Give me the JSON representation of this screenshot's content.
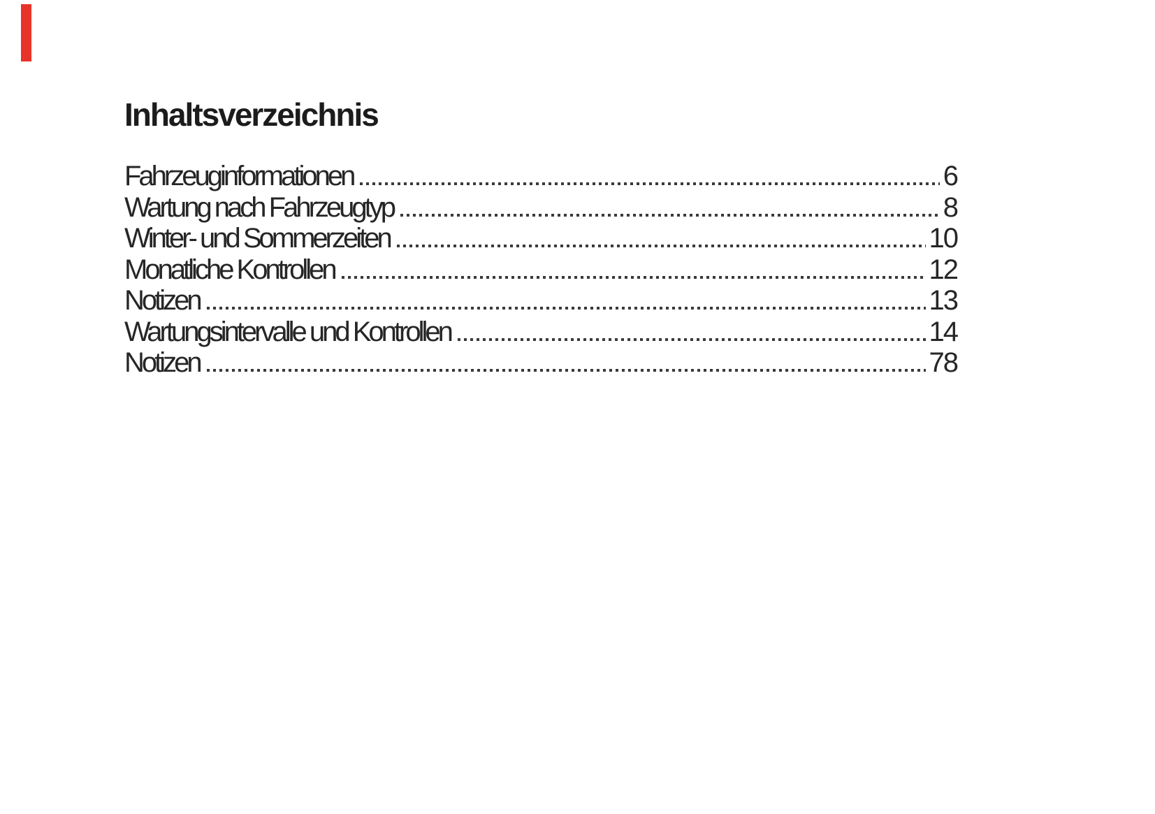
{
  "page": {
    "title": "Inhaltsverzeichnis",
    "background_color": "#ffffff",
    "edge_marker_color": "#e8332a",
    "text_color": "#262626"
  },
  "toc": {
    "entries": [
      {
        "label": "Fahrzeuginformationen",
        "page": "6"
      },
      {
        "label": "Wartung nach Fahrzeugtyp",
        "page": "8"
      },
      {
        "label": "Winter- und Sommerzeiten",
        "page": "10"
      },
      {
        "label": "Monatliche Kontrollen",
        "page": "12"
      },
      {
        "label": "Notizen",
        "page": "13"
      },
      {
        "label": "Wartungsintervalle und Kontrollen",
        "page": "14"
      },
      {
        "label": "Notizen",
        "page": "78"
      }
    ]
  }
}
